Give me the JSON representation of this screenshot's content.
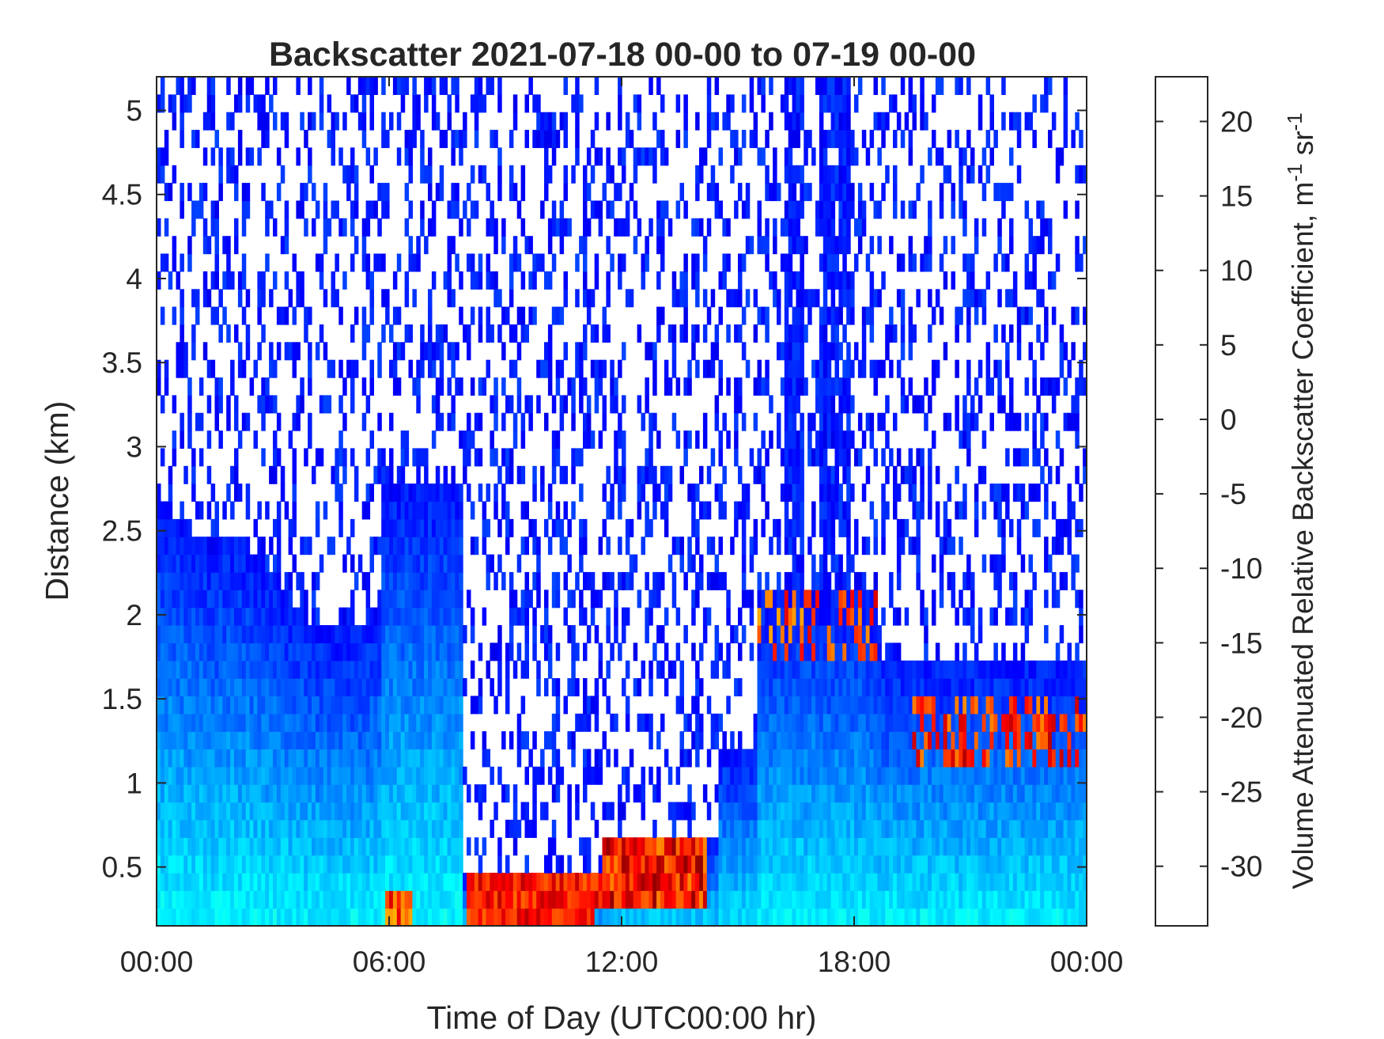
{
  "chart_data": {
    "type": "heatmap",
    "title": "Backscatter 2021-07-18 00-00 to 07-19 00-00",
    "xlabel": "Time of Day (UTC00:00 hr)",
    "ylabel": "Distance (km)",
    "xlim_hours": [
      0,
      24
    ],
    "ylim_km": [
      0.15,
      5.2
    ],
    "x_ticks": [
      {
        "value": 0,
        "label": "00:00"
      },
      {
        "value": 6,
        "label": "06:00"
      },
      {
        "value": 12,
        "label": "12:00"
      },
      {
        "value": 18,
        "label": "18:00"
      },
      {
        "value": 24,
        "label": "00:00"
      }
    ],
    "y_ticks": [
      {
        "value": 0.5,
        "label": "0.5"
      },
      {
        "value": 1,
        "label": "1"
      },
      {
        "value": 1.5,
        "label": "1.5"
      },
      {
        "value": 2,
        "label": "2"
      },
      {
        "value": 2.5,
        "label": "2.5"
      },
      {
        "value": 3,
        "label": "3"
      },
      {
        "value": 3.5,
        "label": "3.5"
      },
      {
        "value": 4,
        "label": "4"
      },
      {
        "value": 4.5,
        "label": "4.5"
      },
      {
        "value": 5,
        "label": "5"
      }
    ],
    "colorbar": {
      "colormap": "jet",
      "clim": [
        -34,
        23
      ],
      "label": "Volume Attenuated Relative Backscatter Coefficient, m",
      "label_sup1": "-1",
      "label_mid": " sr",
      "label_sup2": "-1",
      "ticks": [
        {
          "value": 20,
          "label": "20"
        },
        {
          "value": 15,
          "label": "15"
        },
        {
          "value": 10,
          "label": "10"
        },
        {
          "value": 5,
          "label": "5"
        },
        {
          "value": 0,
          "label": "0"
        },
        {
          "value": -5,
          "label": "-5"
        },
        {
          "value": -10,
          "label": "-10"
        },
        {
          "value": -15,
          "label": "-15"
        },
        {
          "value": -20,
          "label": "-20"
        },
        {
          "value": -25,
          "label": "-25"
        },
        {
          "value": -30,
          "label": "-30"
        }
      ]
    },
    "grid": false,
    "legend": "none"
  }
}
